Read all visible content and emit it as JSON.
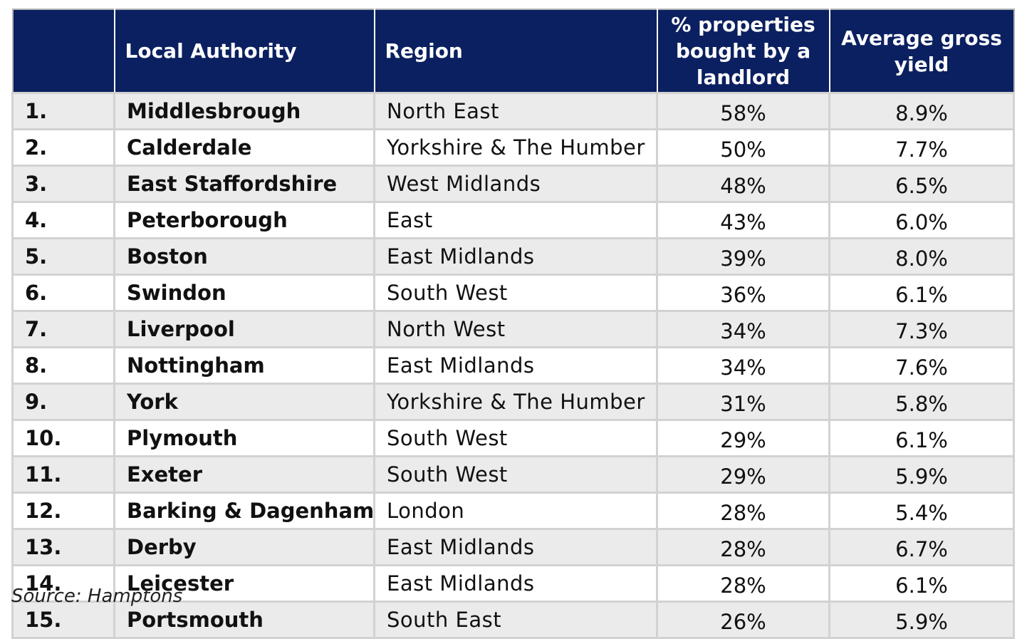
{
  "table": {
    "headers": {
      "rank": "",
      "authority": "Local Authority",
      "region": "Region",
      "pct": "% properties bought by a landlord",
      "yield": "Average gross yield"
    },
    "rows": [
      {
        "rank": "1.",
        "authority": "Middlesbrough",
        "region": "North East",
        "pct": "58%",
        "yield": "8.9%"
      },
      {
        "rank": "2.",
        "authority": "Calderdale",
        "region": "Yorkshire & The Humber",
        "pct": "50%",
        "yield": "7.7%"
      },
      {
        "rank": "3.",
        "authority": "East Staffordshire",
        "region": "West Midlands",
        "pct": "48%",
        "yield": "6.5%"
      },
      {
        "rank": "4.",
        "authority": "Peterborough",
        "region": "East",
        "pct": "43%",
        "yield": "6.0%"
      },
      {
        "rank": "5.",
        "authority": "Boston",
        "region": "East Midlands",
        "pct": "39%",
        "yield": "8.0%"
      },
      {
        "rank": "6.",
        "authority": "Swindon",
        "region": "South West",
        "pct": "36%",
        "yield": "6.1%"
      },
      {
        "rank": "7.",
        "authority": "Liverpool",
        "region": "North West",
        "pct": "34%",
        "yield": "7.3%"
      },
      {
        "rank": "8.",
        "authority": "Nottingham",
        "region": "East Midlands",
        "pct": "34%",
        "yield": "7.6%"
      },
      {
        "rank": "9.",
        "authority": "York",
        "region": "Yorkshire & The Humber",
        "pct": "31%",
        "yield": "5.8%"
      },
      {
        "rank": "10.",
        "authority": "Plymouth",
        "region": "South West",
        "pct": "29%",
        "yield": "6.1%"
      },
      {
        "rank": "11.",
        "authority": "Exeter",
        "region": "South West",
        "pct": "29%",
        "yield": "5.9%"
      },
      {
        "rank": "12.",
        "authority": "Barking & Dagenham",
        "region": "London",
        "pct": "28%",
        "yield": "5.4%"
      },
      {
        "rank": "13.",
        "authority": "Derby",
        "region": "East Midlands",
        "pct": "28%",
        "yield": "6.7%"
      },
      {
        "rank": "14.",
        "authority": "Leicester",
        "region": "East Midlands",
        "pct": "28%",
        "yield": "6.1%"
      },
      {
        "rank": "15.",
        "authority": "Portsmouth",
        "region": "South East",
        "pct": "26%",
        "yield": "5.9%"
      }
    ]
  },
  "source": "Source: Hamptons",
  "colors": {
    "header_bg": "#0b2060",
    "header_text": "#ffffff",
    "stripe": "#ebebeb",
    "grid": "#d2d2d2"
  }
}
